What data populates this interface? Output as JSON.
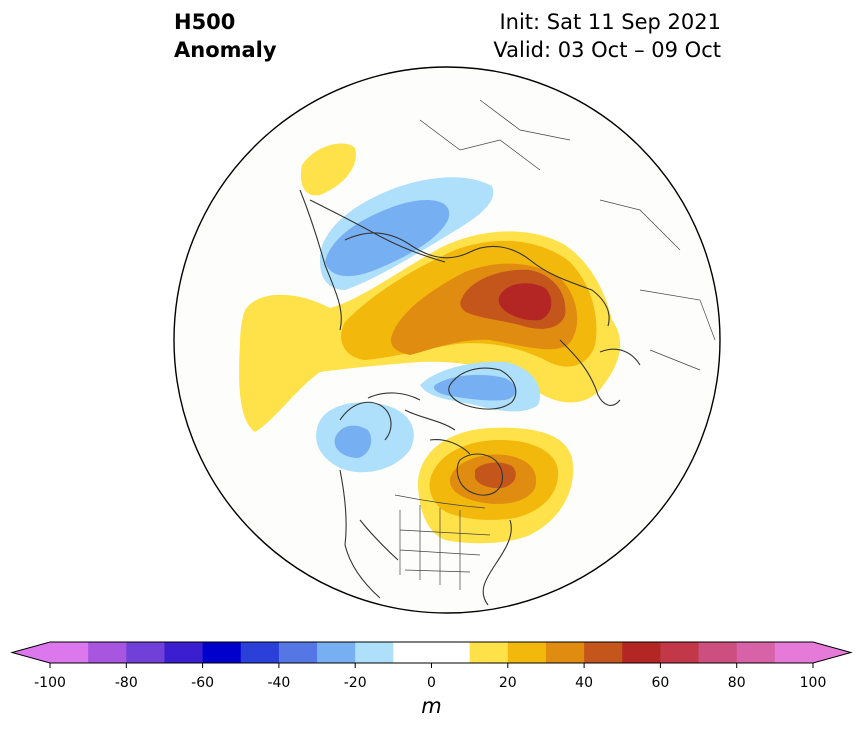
{
  "title": {
    "left_line1": "H500",
    "left_line2": "Anomaly",
    "right_line1": "Init: Sat 11 Sep 2021",
    "right_line2": "Valid: 03 Oct – 09 Oct"
  },
  "colorbar": {
    "unit": "m",
    "min": -100,
    "max": 100,
    "extend": "both",
    "tick_values": [
      -100,
      -80,
      -60,
      -40,
      -20,
      0,
      20,
      40,
      60,
      80,
      100
    ],
    "tick_labels": [
      "-100",
      "-80",
      "-60",
      "-40",
      "-20",
      "0",
      "20",
      "40",
      "60",
      "80",
      "100"
    ],
    "bins": [
      {
        "from": -100,
        "to": -90,
        "color": "#dd77ee"
      },
      {
        "from": -90,
        "to": -80,
        "color": "#a855e0"
      },
      {
        "from": -80,
        "to": -70,
        "color": "#7040d8"
      },
      {
        "from": -70,
        "to": -60,
        "color": "#3a1ed0"
      },
      {
        "from": -60,
        "to": -50,
        "color": "#0000cc"
      },
      {
        "from": -50,
        "to": -40,
        "color": "#2a40d8"
      },
      {
        "from": -40,
        "to": -30,
        "color": "#5577e6"
      },
      {
        "from": -30,
        "to": -20,
        "color": "#77b0f2"
      },
      {
        "from": -20,
        "to": -10,
        "color": "#aee0fb"
      },
      {
        "from": -10,
        "to": 0,
        "color": "#ffffff"
      },
      {
        "from": 0,
        "to": 10,
        "color": "#ffffff"
      },
      {
        "from": 10,
        "to": 20,
        "color": "#ffe14a"
      },
      {
        "from": 20,
        "to": 30,
        "color": "#f2b80c"
      },
      {
        "from": 30,
        "to": 40,
        "color": "#df8c10"
      },
      {
        "from": 40,
        "to": 50,
        "color": "#c4561c"
      },
      {
        "from": 50,
        "to": 60,
        "color": "#b32624"
      },
      {
        "from": 60,
        "to": 70,
        "color": "#c23848"
      },
      {
        "from": 70,
        "to": 80,
        "color": "#cc4f80"
      },
      {
        "from": 80,
        "to": 90,
        "color": "#d862a8"
      },
      {
        "from": 90,
        "to": 100,
        "color": "#e67ad8"
      }
    ],
    "under_color": "#dd77ee",
    "over_color": "#e67ad8"
  },
  "map": {
    "projection": "north-polar-stereographic",
    "background": "#fdfdfb",
    "coastline_color": "#333333",
    "border_color": "#444444"
  }
}
